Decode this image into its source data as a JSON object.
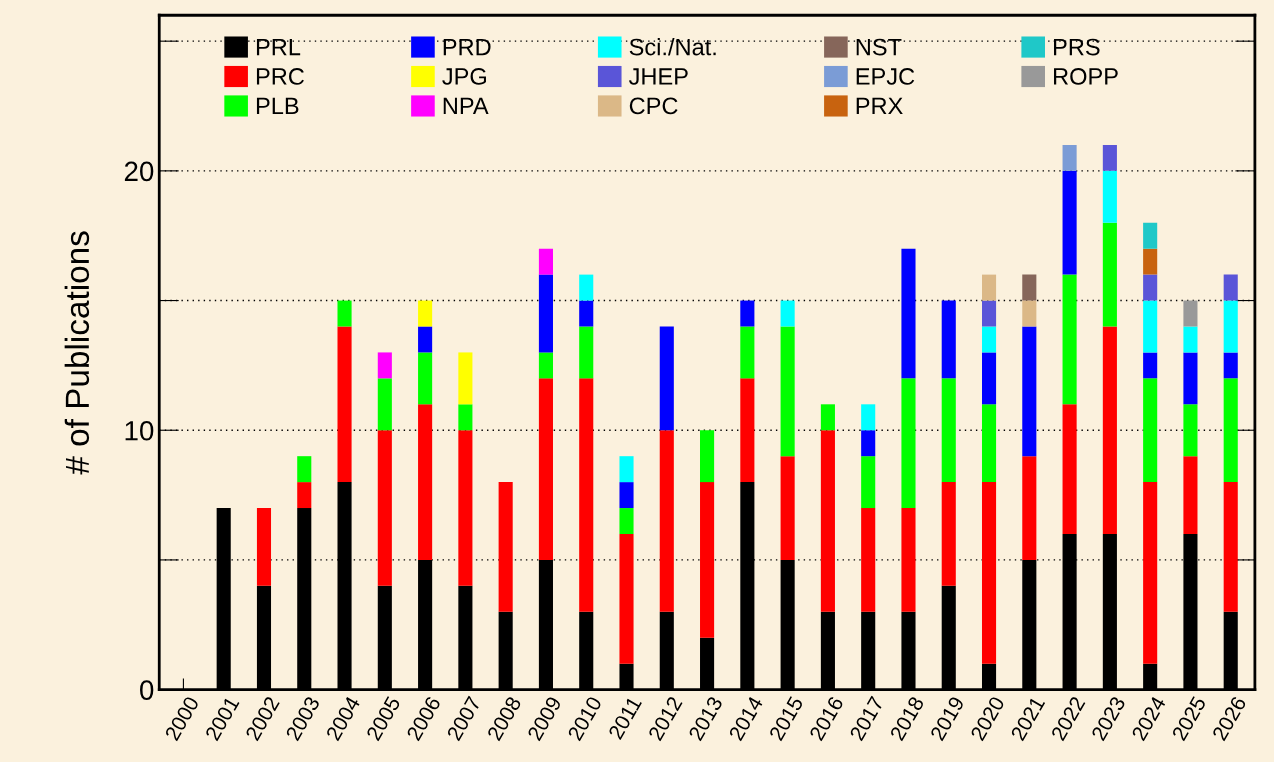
{
  "chart_data": {
    "type": "bar",
    "stacked": true,
    "ylabel": "# of Publications",
    "categories": [
      "2000",
      "2001",
      "2002",
      "2003",
      "2004",
      "2005",
      "2006",
      "2007",
      "2008",
      "2009",
      "2010",
      "2011",
      "2012",
      "2013",
      "2014",
      "2015",
      "2016",
      "2017",
      "2018",
      "2019",
      "2020",
      "2021",
      "2022",
      "2023",
      "2024",
      "2025",
      "2026"
    ],
    "ylim": [
      0,
      26
    ],
    "yticks": [
      0,
      {
        "value": 5,
        "label": null
      },
      10,
      {
        "value": 15,
        "label": null
      },
      20,
      {
        "value": 25,
        "label": null
      }
    ],
    "grid": "y",
    "legend": "top left",
    "series": [
      {
        "name": "PRL",
        "color": "#000000",
        "values": [
          null,
          7,
          4,
          7,
          8,
          4,
          5,
          4,
          3,
          5,
          3,
          1,
          3,
          2,
          8,
          5,
          3,
          3,
          3,
          4,
          1,
          5,
          6,
          6,
          1,
          6,
          3
        ]
      },
      {
        "name": "PRC",
        "color": "#ff0000",
        "values": [
          null,
          null,
          3,
          1,
          6,
          6,
          6,
          6,
          5,
          7,
          9,
          5,
          7,
          6,
          4,
          4,
          7,
          4,
          4,
          4,
          7,
          4,
          5,
          8,
          7,
          3,
          5
        ]
      },
      {
        "name": "PLB",
        "color": "#00ff00",
        "values": [
          null,
          null,
          null,
          1,
          1,
          2,
          2,
          1,
          null,
          1,
          2,
          1,
          null,
          2,
          2,
          5,
          1,
          2,
          5,
          4,
          3,
          null,
          5,
          4,
          4,
          2,
          4
        ]
      },
      {
        "name": "PRD",
        "color": "#0000ff",
        "values": [
          null,
          null,
          null,
          null,
          null,
          null,
          1,
          null,
          null,
          3,
          1,
          1,
          4,
          null,
          1,
          null,
          null,
          1,
          5,
          3,
          2,
          5,
          4,
          null,
          1,
          2,
          1
        ]
      },
      {
        "name": "JPG",
        "color": "#ffff00",
        "values": [
          null,
          null,
          null,
          null,
          null,
          null,
          1,
          2,
          null,
          null,
          null,
          null,
          null,
          null,
          null,
          null,
          null,
          null,
          null,
          null,
          null,
          null,
          null,
          null,
          null,
          null,
          null
        ]
      },
      {
        "name": "NPA",
        "color": "#ff00ff",
        "values": [
          null,
          null,
          null,
          null,
          null,
          1,
          null,
          null,
          null,
          1,
          null,
          null,
          null,
          null,
          null,
          null,
          null,
          null,
          null,
          null,
          null,
          null,
          null,
          null,
          null,
          null,
          null
        ]
      },
      {
        "name": "Sci./Nat.",
        "color": "#00ffff",
        "values": [
          null,
          null,
          null,
          null,
          null,
          null,
          null,
          null,
          null,
          null,
          1,
          1,
          null,
          null,
          null,
          1,
          null,
          1,
          null,
          null,
          1,
          null,
          null,
          2,
          2,
          1,
          2
        ]
      },
      {
        "name": "JHEP",
        "color": "#5a55d8",
        "values": [
          null,
          null,
          null,
          null,
          null,
          null,
          null,
          null,
          null,
          null,
          null,
          null,
          null,
          null,
          null,
          null,
          null,
          null,
          null,
          null,
          1,
          null,
          null,
          1,
          1,
          null,
          1
        ]
      },
      {
        "name": "CPC",
        "color": "#dbb887",
        "values": [
          null,
          null,
          null,
          null,
          null,
          null,
          null,
          null,
          null,
          null,
          null,
          null,
          null,
          null,
          null,
          null,
          null,
          null,
          null,
          null,
          1,
          1,
          null,
          null,
          null,
          null,
          null
        ]
      },
      {
        "name": "NST",
        "color": "#86665a",
        "values": [
          null,
          null,
          null,
          null,
          null,
          null,
          null,
          null,
          null,
          null,
          null,
          null,
          null,
          null,
          null,
          null,
          null,
          null,
          null,
          null,
          null,
          1,
          null,
          null,
          null,
          null,
          null
        ]
      },
      {
        "name": "EPJC",
        "color": "#7b9cd6",
        "values": [
          null,
          null,
          null,
          null,
          null,
          null,
          null,
          null,
          null,
          null,
          null,
          null,
          null,
          null,
          null,
          null,
          null,
          null,
          null,
          null,
          null,
          null,
          1,
          null,
          null,
          null,
          null
        ]
      },
      {
        "name": "PRX",
        "color": "#c8630f",
        "values": [
          null,
          null,
          null,
          null,
          null,
          null,
          null,
          null,
          null,
          null,
          null,
          null,
          null,
          null,
          null,
          null,
          null,
          null,
          null,
          null,
          null,
          null,
          null,
          null,
          1,
          null,
          null
        ]
      },
      {
        "name": "PRS",
        "color": "#1fc8c8",
        "values": [
          null,
          null,
          null,
          null,
          null,
          null,
          null,
          null,
          null,
          null,
          null,
          null,
          null,
          null,
          null,
          null,
          null,
          null,
          null,
          null,
          null,
          null,
          null,
          null,
          1,
          null,
          null
        ]
      },
      {
        "name": "ROPP",
        "color": "#999999",
        "values": [
          null,
          null,
          null,
          null,
          null,
          null,
          null,
          null,
          null,
          null,
          null,
          null,
          null,
          null,
          null,
          null,
          null,
          null,
          null,
          null,
          null,
          null,
          null,
          null,
          null,
          1,
          null
        ]
      }
    ]
  }
}
